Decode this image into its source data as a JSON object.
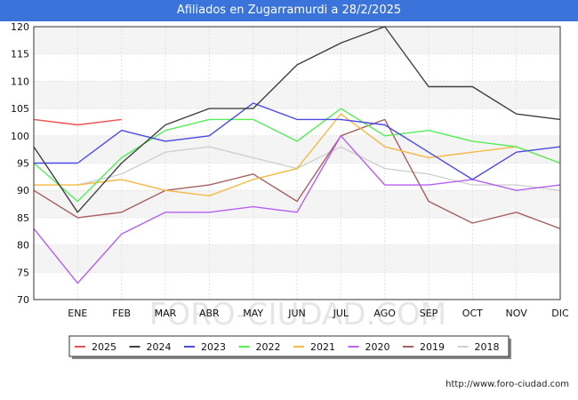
{
  "chart_data": {
    "type": "line",
    "title": "Afiliados en Zugarramurdi a 28/2/2025",
    "categories": [
      "",
      "ENE",
      "FEB",
      "MAR",
      "ABR",
      "MAY",
      "JUN",
      "JUL",
      "AGO",
      "SEP",
      "OCT",
      "NOV",
      "DIC"
    ],
    "ylim": [
      70,
      120
    ],
    "yticks": [
      70,
      75,
      80,
      85,
      90,
      95,
      100,
      105,
      110,
      115,
      120
    ],
    "grid": true,
    "legend_position": "bottom",
    "series": [
      {
        "name": "2025",
        "color": "#f05050",
        "values": [
          103,
          102,
          103,
          null,
          null,
          null,
          null,
          null,
          null,
          null,
          null,
          null,
          null
        ]
      },
      {
        "name": "2024",
        "color": "#404040",
        "values": [
          98,
          86,
          95,
          102,
          105,
          105,
          113,
          117,
          120,
          109,
          109,
          104,
          103
        ]
      },
      {
        "name": "2023",
        "color": "#4a4ae8",
        "values": [
          95,
          95,
          101,
          99,
          100,
          106,
          103,
          103,
          102,
          97,
          92,
          97,
          98
        ]
      },
      {
        "name": "2022",
        "color": "#55ee55",
        "values": [
          95,
          88,
          96,
          101,
          103,
          103,
          99,
          105,
          100,
          101,
          99,
          98,
          95
        ]
      },
      {
        "name": "2021",
        "color": "#f5b942",
        "values": [
          91,
          91,
          92,
          90,
          89,
          92,
          94,
          104,
          98,
          96,
          97,
          98,
          95
        ]
      },
      {
        "name": "2020",
        "color": "#b560f0",
        "values": [
          83,
          73,
          82,
          86,
          86,
          87,
          86,
          100,
          91,
          91,
          92,
          90,
          91
        ]
      },
      {
        "name": "2019",
        "color": "#a86060",
        "values": [
          90,
          85,
          86,
          90,
          91,
          93,
          88,
          100,
          103,
          88,
          84,
          86,
          83
        ]
      },
      {
        "name": "2018",
        "color": "#d0d0d0",
        "values": [
          null,
          91,
          93,
          97,
          98,
          96,
          94,
          98,
          94,
          93,
          91,
          91,
          90
        ]
      }
    ],
    "watermark": "FORO-CIUDAD.COM"
  },
  "footer": {
    "url": "http://www.foro-ciudad.com"
  }
}
